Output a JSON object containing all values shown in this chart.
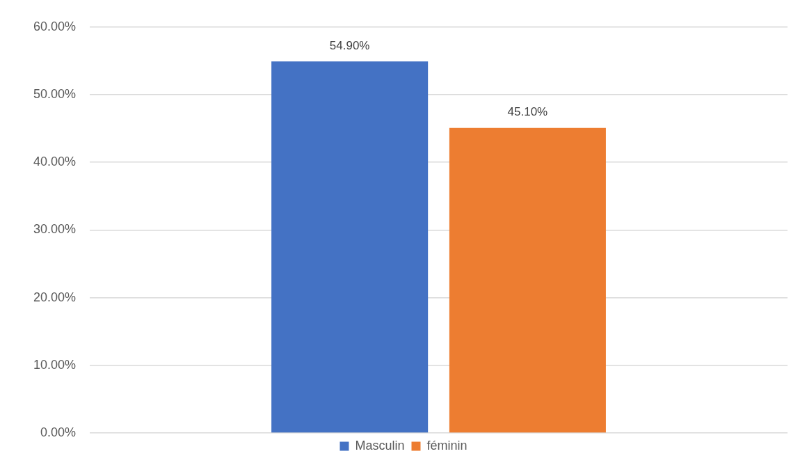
{
  "chart_data": {
    "type": "bar",
    "categories": [
      null
    ],
    "series": [
      {
        "name": "Masculin",
        "color": "#4472c4",
        "values": [
          54.9
        ],
        "value_labels": [
          "54.90%"
        ]
      },
      {
        "name": "féminin",
        "color": "#ed7d31",
        "values": [
          45.1
        ],
        "value_labels": [
          "45.10%"
        ]
      }
    ],
    "ylim": [
      0,
      60
    ],
    "yticks": [
      {
        "value": 0,
        "label": "0.00%"
      },
      {
        "value": 10,
        "label": "10.00%"
      },
      {
        "value": 20,
        "label": "20.00%"
      },
      {
        "value": 30,
        "label": "30.00%"
      },
      {
        "value": 40,
        "label": "40.00%"
      },
      {
        "value": 50,
        "label": "50.00%"
      },
      {
        "value": 60,
        "label": "60.00%"
      }
    ],
    "grid": "y",
    "legend": "bottom"
  }
}
